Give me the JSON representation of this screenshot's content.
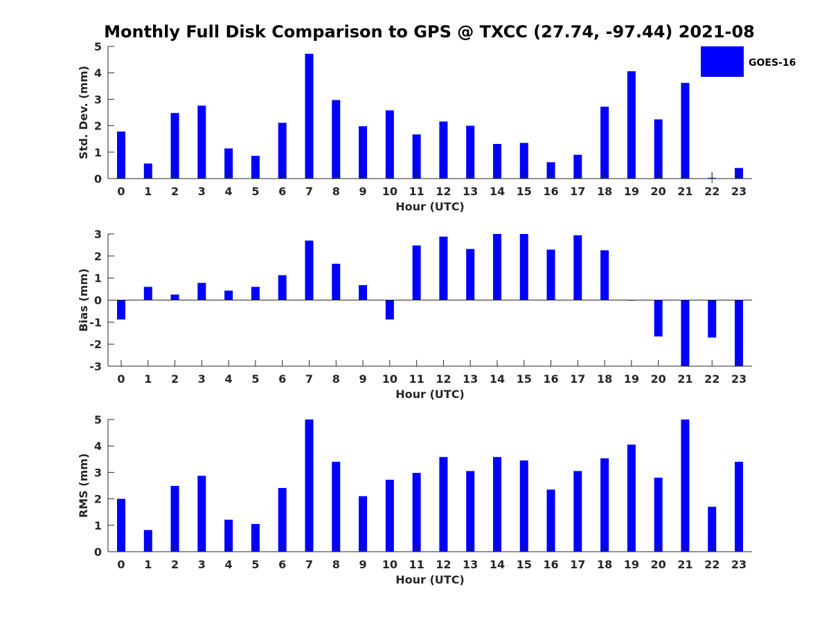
{
  "chart_data": [
    {
      "type": "bar",
      "title": "Monthly Full Disk Comparison to GPS @ TXCC (27.74, -97.44) 2021-08",
      "xlabel": "Hour (UTC)",
      "ylabel": "Std. Dev. (mm)",
      "ylim": [
        0,
        5
      ],
      "yticks": [
        "0",
        "1",
        "2",
        "3",
        "4",
        "5"
      ],
      "categories": [
        "0",
        "1",
        "2",
        "3",
        "4",
        "5",
        "6",
        "7",
        "8",
        "9",
        "10",
        "11",
        "12",
        "13",
        "14",
        "15",
        "16",
        "17",
        "18",
        "19",
        "20",
        "21",
        "22",
        "23"
      ],
      "series": [
        {
          "name": "GOES-16",
          "values": [
            1.78,
            0.57,
            2.48,
            2.76,
            1.14,
            0.86,
            2.11,
            4.72,
            2.97,
            1.98,
            2.58,
            1.67,
            2.16,
            2.0,
            1.31,
            1.35,
            0.62,
            0.9,
            2.72,
            4.06,
            2.24,
            3.62,
            0.03,
            0.4
          ]
        }
      ],
      "error_bars": [
        {
          "category": "22",
          "half_width": 0.2
        }
      ],
      "legend": {
        "entries": [
          "GOES-16"
        ],
        "position": "top-right",
        "color": "#0000ff"
      }
    },
    {
      "type": "bar",
      "xlabel": "Hour (UTC)",
      "ylabel": "Bias (mm)",
      "ylim": [
        -3,
        3
      ],
      "yticks": [
        "-3",
        "-2",
        "-1",
        "0",
        "1",
        "2",
        "3"
      ],
      "categories": [
        "0",
        "1",
        "2",
        "3",
        "4",
        "5",
        "6",
        "7",
        "8",
        "9",
        "10",
        "11",
        "12",
        "13",
        "14",
        "15",
        "16",
        "17",
        "18",
        "19",
        "20",
        "21",
        "22",
        "23"
      ],
      "series": [
        {
          "name": "GOES-16",
          "values": [
            -0.88,
            0.6,
            0.25,
            0.78,
            0.43,
            0.6,
            1.13,
            2.7,
            1.65,
            0.68,
            -0.88,
            2.48,
            2.88,
            2.32,
            3.0,
            3.0,
            2.29,
            2.94,
            2.26,
            0.0,
            -1.65,
            -3.0,
            -1.7,
            -3.0
          ]
        }
      ]
    },
    {
      "type": "bar",
      "xlabel": "Hour (UTC)",
      "ylabel": "RMS (mm)",
      "ylim": [
        0,
        5
      ],
      "yticks": [
        "0",
        "1",
        "2",
        "3",
        "4",
        "5"
      ],
      "categories": [
        "0",
        "1",
        "2",
        "3",
        "4",
        "5",
        "6",
        "7",
        "8",
        "9",
        "10",
        "11",
        "12",
        "13",
        "14",
        "15",
        "16",
        "17",
        "18",
        "19",
        "20",
        "21",
        "22",
        "23"
      ],
      "series": [
        {
          "name": "GOES-16",
          "values": [
            2.0,
            0.82,
            2.49,
            2.87,
            1.21,
            1.05,
            2.41,
            5.0,
            3.4,
            2.1,
            2.72,
            2.98,
            3.58,
            3.05,
            3.58,
            3.45,
            2.35,
            3.05,
            3.53,
            4.05,
            2.8,
            5.0,
            1.7,
            3.4
          ]
        }
      ]
    }
  ],
  "colors": {
    "bar": "#0000ff",
    "axis": "#262626",
    "background": "#ffffff"
  }
}
